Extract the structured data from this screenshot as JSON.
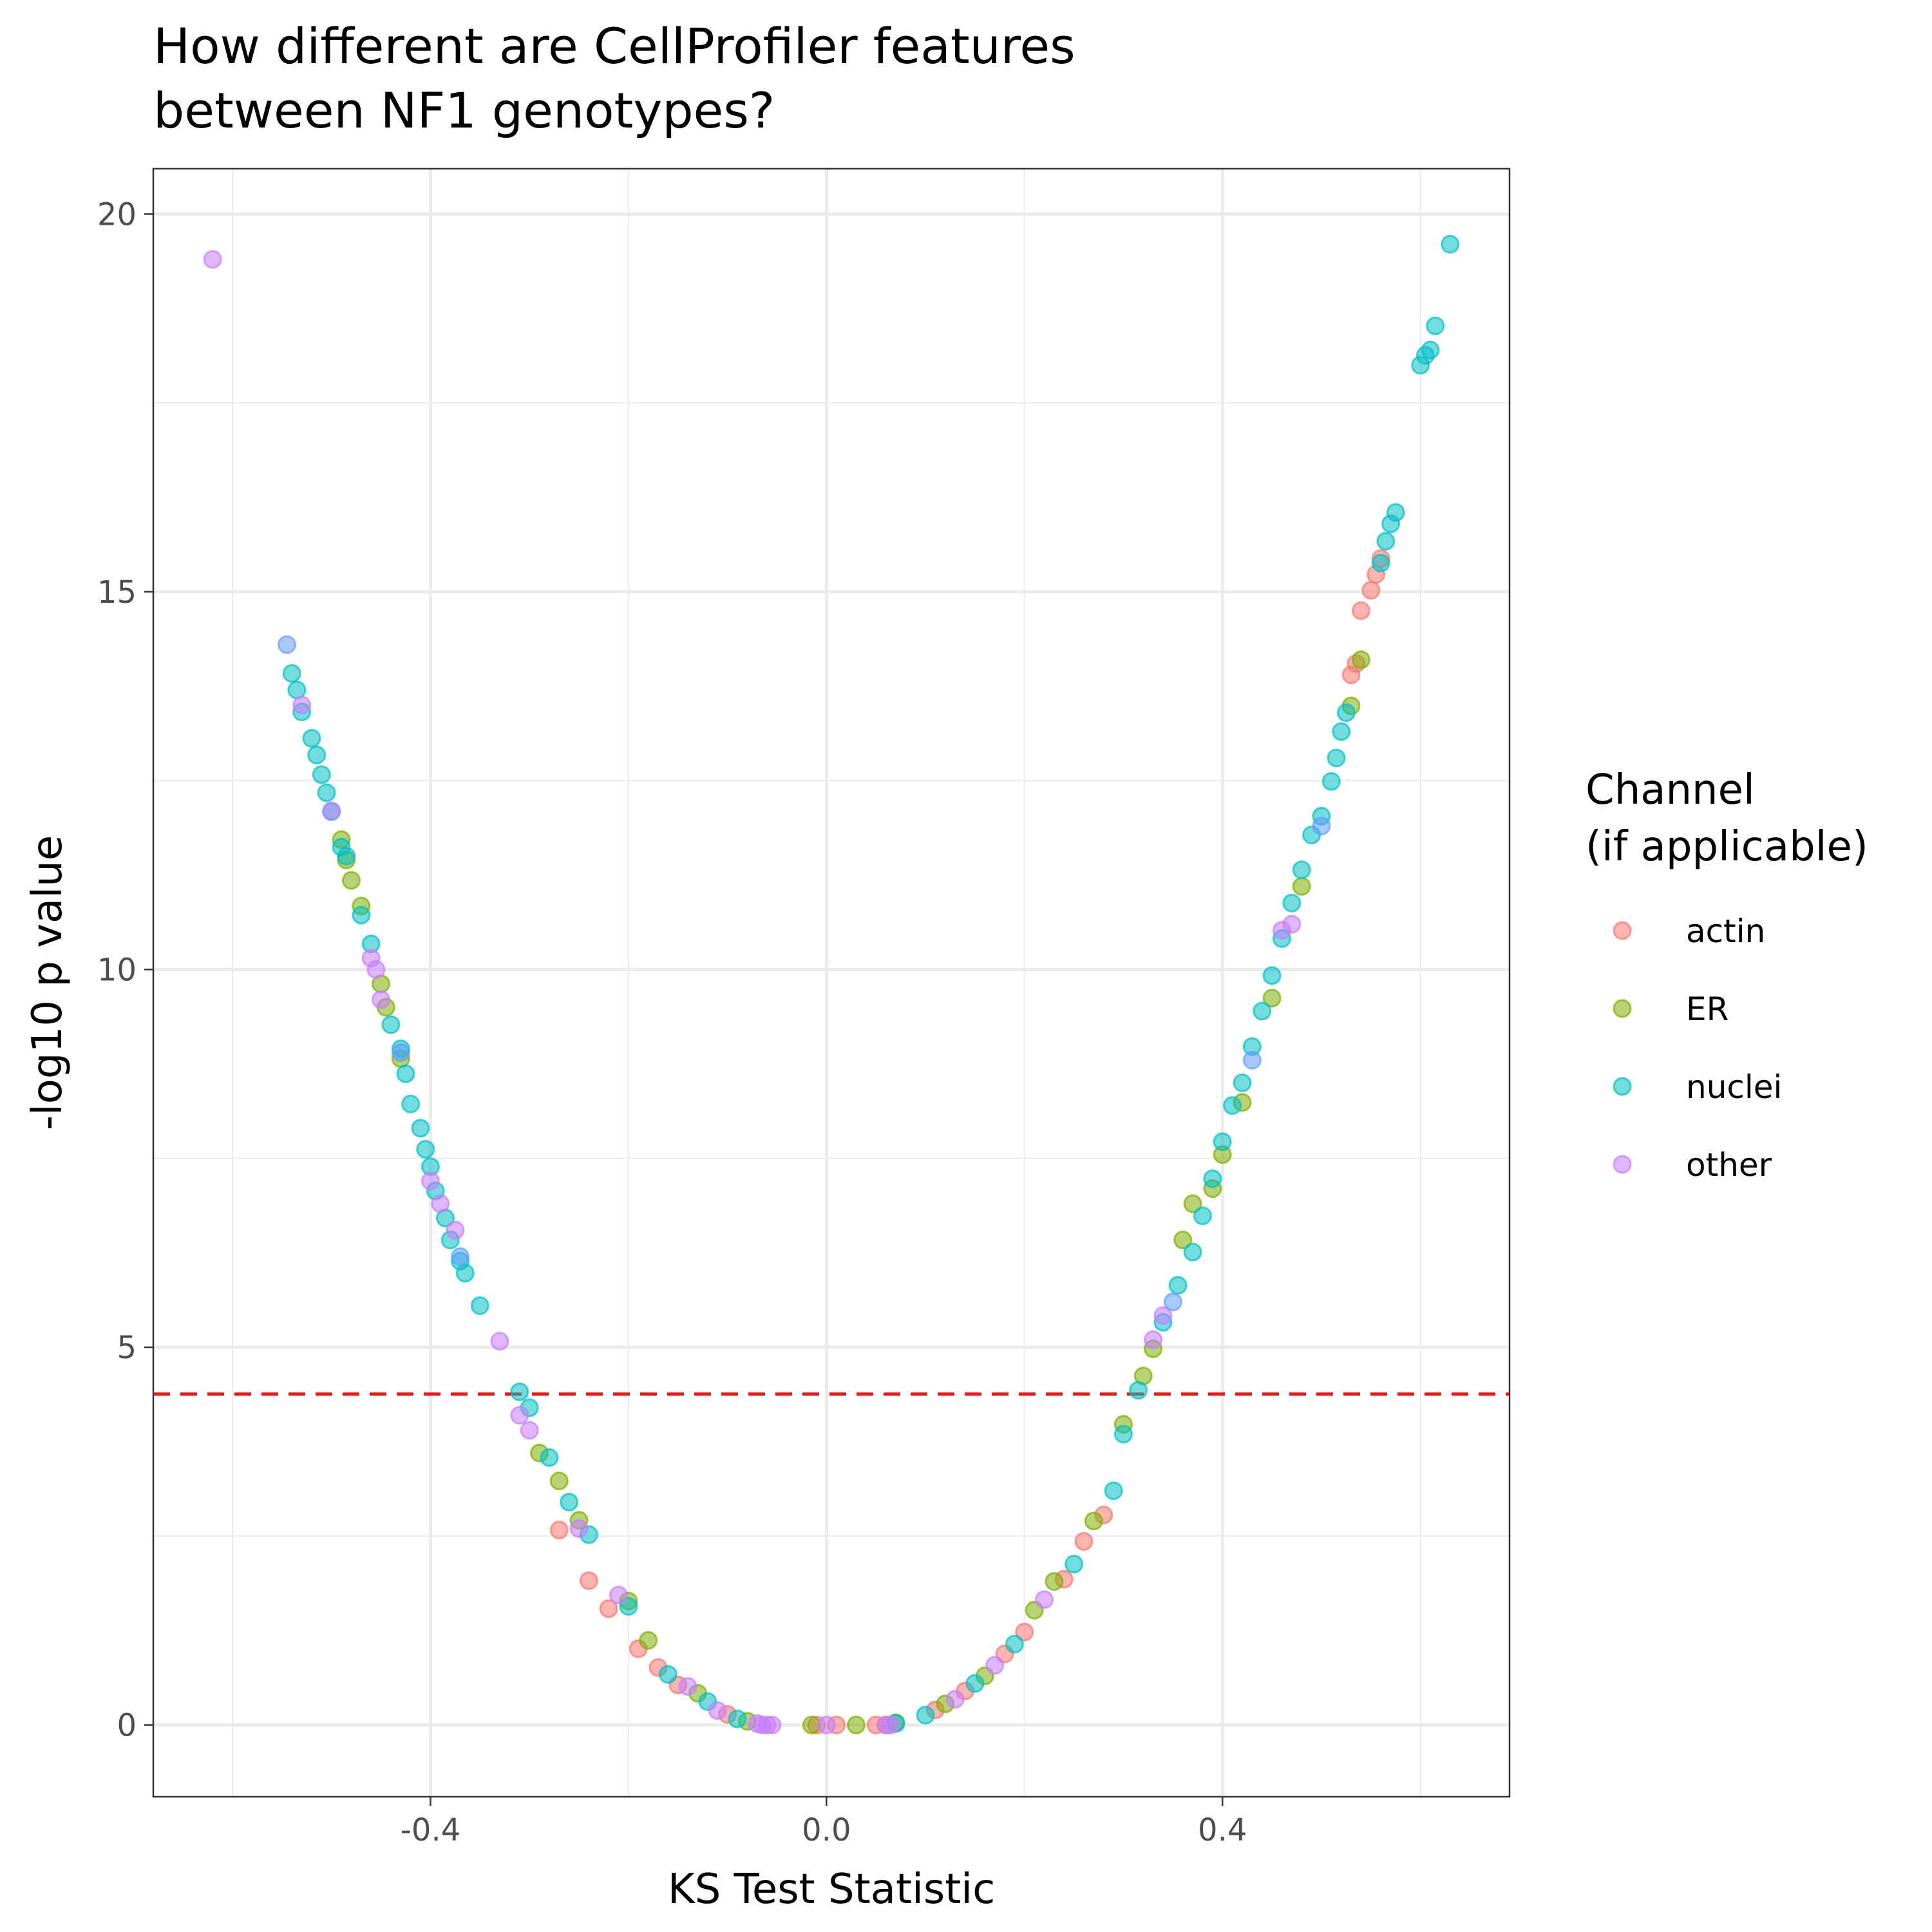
{
  "chart_data": {
    "type": "scatter",
    "title_lines": [
      "How different are CellProfiler features",
      "between NF1 genotypes?"
    ],
    "xlabel": "KS Test Statistic",
    "ylabel": "-log10 p value",
    "xlim": [
      -0.68,
      0.69
    ],
    "ylim": [
      -0.95,
      20.6
    ],
    "x_ticks": [
      -0.4,
      0.0,
      0.4
    ],
    "x_tick_labels": [
      "-0.4",
      "0.0",
      "0.4"
    ],
    "y_ticks": [
      0,
      5,
      10,
      15,
      20
    ],
    "y_tick_labels": [
      "0",
      "5",
      "10",
      "15",
      "20"
    ],
    "grid": true,
    "threshold_line": {
      "y": 4.38,
      "color": "#e41a1c",
      "style": "dashed"
    },
    "legend": {
      "title_lines": [
        "Channel",
        "(if applicable)"
      ],
      "placement": "right",
      "entries": [
        {
          "label": "actin",
          "color": "#F8766D"
        },
        {
          "label": "ER",
          "color": "#7CAE00"
        },
        {
          "label": "nuclei",
          "color": "#00BFC4"
        },
        {
          "label": "other",
          "color": "#C77CFF"
        }
      ]
    },
    "curve_model": "y = 53.4 * (|x| - 0.05)^2 for |x| > 0.05, else 0 (approximate)",
    "series": [
      {
        "name": "actin",
        "color": "#F8766D",
        "points": [
          [
            -0.19,
            1.01
          ],
          [
            -0.17,
            0.76
          ],
          [
            -0.15,
            0.53
          ],
          [
            -0.24,
            1.91
          ],
          [
            -0.22,
            1.54
          ],
          [
            -0.1,
            0.14
          ],
          [
            -0.01,
            0.0
          ],
          [
            0.01,
            0.0
          ],
          [
            0.05,
            0.0
          ],
          [
            0.06,
            0.0
          ],
          [
            0.11,
            0.2
          ],
          [
            0.14,
            0.45
          ],
          [
            0.18,
            0.94
          ],
          [
            0.2,
            1.23
          ],
          [
            0.24,
            1.93
          ],
          [
            0.26,
            2.43
          ],
          [
            0.28,
            2.78
          ],
          [
            0.53,
            13.9
          ],
          [
            0.535,
            14.05
          ],
          [
            0.54,
            14.75
          ],
          [
            0.55,
            15.02
          ],
          [
            0.555,
            15.23
          ],
          [
            0.56,
            15.44
          ],
          [
            -0.27,
            2.58
          ]
        ]
      },
      {
        "name": "ER",
        "color": "#7CAE00",
        "points": [
          [
            -0.49,
            11.72
          ],
          [
            -0.485,
            11.45
          ],
          [
            -0.48,
            11.18
          ],
          [
            -0.47,
            10.84
          ],
          [
            -0.45,
            9.81
          ],
          [
            -0.445,
            9.5
          ],
          [
            -0.43,
            8.82
          ],
          [
            -0.29,
            3.6
          ],
          [
            -0.27,
            3.23
          ],
          [
            -0.25,
            2.71
          ],
          [
            -0.2,
            1.64
          ],
          [
            -0.18,
            1.12
          ],
          [
            -0.13,
            0.42
          ],
          [
            -0.08,
            0.05
          ],
          [
            -0.015,
            0.0
          ],
          [
            0.03,
            0.0
          ],
          [
            0.07,
            0.03
          ],
          [
            0.12,
            0.28
          ],
          [
            0.16,
            0.65
          ],
          [
            0.21,
            1.52
          ],
          [
            0.23,
            1.9
          ],
          [
            0.27,
            2.7
          ],
          [
            0.3,
            3.98
          ],
          [
            0.32,
            4.62
          ],
          [
            0.33,
            4.98
          ],
          [
            0.36,
            6.42
          ],
          [
            0.39,
            7.1
          ],
          [
            0.42,
            8.24
          ],
          [
            0.45,
            9.62
          ],
          [
            0.48,
            11.1
          ],
          [
            0.53,
            13.49
          ],
          [
            0.54,
            14.1
          ],
          [
            0.4,
            7.55
          ],
          [
            0.37,
            6.9
          ]
        ]
      },
      {
        "name": "nuclei",
        "color": "#00BFC4",
        "points": [
          [
            -0.54,
            13.92
          ],
          [
            -0.535,
            13.7
          ],
          [
            -0.53,
            13.41
          ],
          [
            -0.52,
            13.06
          ],
          [
            -0.515,
            12.84
          ],
          [
            -0.51,
            12.58
          ],
          [
            -0.505,
            12.34
          ],
          [
            -0.5,
            12.09
          ],
          [
            -0.49,
            11.62
          ],
          [
            -0.485,
            11.5
          ],
          [
            -0.47,
            10.72
          ],
          [
            -0.46,
            10.34
          ],
          [
            -0.44,
            9.27
          ],
          [
            -0.43,
            8.95
          ],
          [
            -0.425,
            8.62
          ],
          [
            -0.42,
            8.22
          ],
          [
            -0.41,
            7.9
          ],
          [
            -0.405,
            7.62
          ],
          [
            -0.4,
            7.39
          ],
          [
            -0.395,
            7.07
          ],
          [
            -0.385,
            6.71
          ],
          [
            -0.38,
            6.42
          ],
          [
            -0.37,
            6.14
          ],
          [
            -0.365,
            5.98
          ],
          [
            -0.35,
            5.55
          ],
          [
            -0.31,
            4.41
          ],
          [
            -0.3,
            4.2
          ],
          [
            -0.28,
            3.54
          ],
          [
            -0.26,
            2.95
          ],
          [
            -0.24,
            2.52
          ],
          [
            -0.2,
            1.57
          ],
          [
            -0.16,
            0.67
          ],
          [
            -0.12,
            0.31
          ],
          [
            -0.09,
            0.08
          ],
          [
            0.07,
            0.02
          ],
          [
            0.1,
            0.13
          ],
          [
            0.15,
            0.55
          ],
          [
            0.19,
            1.07
          ],
          [
            0.25,
            2.13
          ],
          [
            0.29,
            3.1
          ],
          [
            0.3,
            3.85
          ],
          [
            0.315,
            4.43
          ],
          [
            0.34,
            5.33
          ],
          [
            0.355,
            5.82
          ],
          [
            0.37,
            6.26
          ],
          [
            0.38,
            6.74
          ],
          [
            0.39,
            7.23
          ],
          [
            0.4,
            7.72
          ],
          [
            0.41,
            8.2
          ],
          [
            0.42,
            8.5
          ],
          [
            0.43,
            8.98
          ],
          [
            0.44,
            9.45
          ],
          [
            0.45,
            9.92
          ],
          [
            0.46,
            10.41
          ],
          [
            0.47,
            10.88
          ],
          [
            0.48,
            11.32
          ],
          [
            0.49,
            11.78
          ],
          [
            0.5,
            12.03
          ],
          [
            0.51,
            12.49
          ],
          [
            0.515,
            12.8
          ],
          [
            0.52,
            13.15
          ],
          [
            0.525,
            13.4
          ],
          [
            0.56,
            15.38
          ],
          [
            0.565,
            15.67
          ],
          [
            0.57,
            15.9
          ],
          [
            0.575,
            16.05
          ],
          [
            0.6,
            18.0
          ],
          [
            0.605,
            18.13
          ],
          [
            0.61,
            18.2
          ],
          [
            0.615,
            18.52
          ],
          [
            0.63,
            19.6
          ]
        ]
      },
      {
        "name": "other",
        "color": "#C77CFF",
        "points": [
          [
            -0.62,
            19.4
          ],
          [
            -0.53,
            13.5
          ],
          [
            -0.5,
            12.1
          ],
          [
            -0.46,
            10.15
          ],
          [
            -0.455,
            10.0
          ],
          [
            -0.45,
            9.6
          ],
          [
            -0.4,
            7.2
          ],
          [
            -0.39,
            6.9
          ],
          [
            -0.375,
            6.55
          ],
          [
            -0.33,
            5.08
          ],
          [
            -0.31,
            4.1
          ],
          [
            -0.3,
            3.9
          ],
          [
            -0.25,
            2.6
          ],
          [
            -0.21,
            1.72
          ],
          [
            -0.14,
            0.51
          ],
          [
            -0.11,
            0.19
          ],
          [
            -0.07,
            0.02
          ],
          [
            -0.065,
            0.0
          ],
          [
            -0.06,
            0.0
          ],
          [
            -0.055,
            0.0
          ],
          [
            0.0,
            0.0
          ],
          [
            0.06,
            0.0
          ],
          [
            0.065,
            0.0
          ],
          [
            0.13,
            0.34
          ],
          [
            0.17,
            0.79
          ],
          [
            0.22,
            1.66
          ],
          [
            0.33,
            5.1
          ],
          [
            0.34,
            5.42
          ],
          [
            0.46,
            10.52
          ],
          [
            0.47,
            10.6
          ]
        ]
      },
      {
        "name": "",
        "color": "#619CFF",
        "points": [
          [
            -0.545,
            14.3
          ],
          [
            -0.37,
            6.2
          ],
          [
            -0.43,
            8.9
          ],
          [
            0.43,
            8.8
          ],
          [
            0.5,
            11.9
          ],
          [
            0.35,
            5.6
          ]
        ]
      }
    ]
  }
}
